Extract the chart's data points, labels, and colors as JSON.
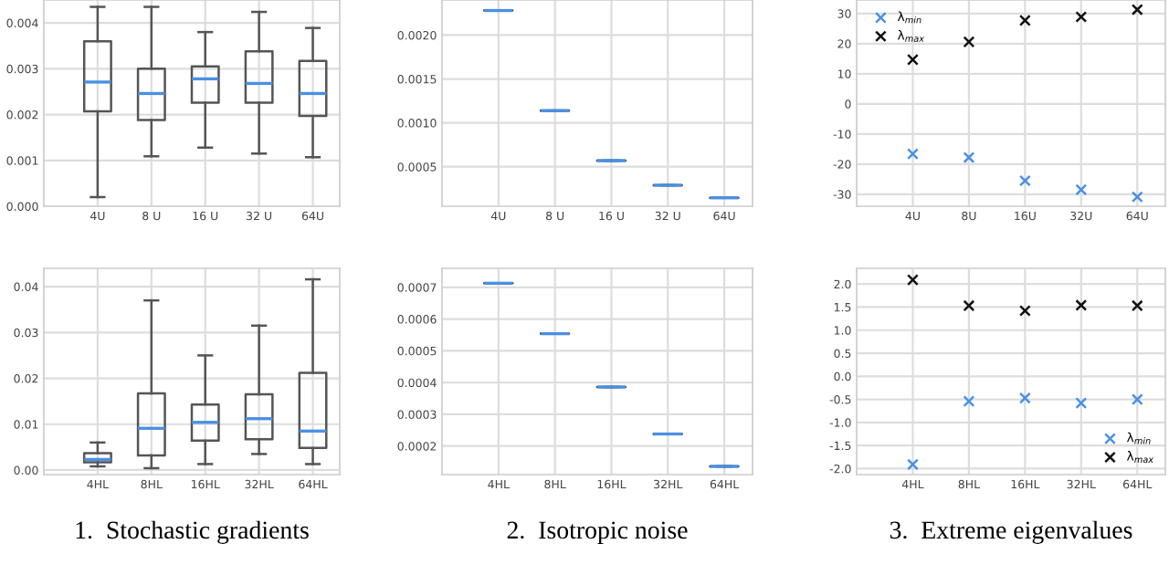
{
  "chart_data": [
    {
      "type": "box",
      "categories": [
        "4U",
        "8 U",
        "16 U",
        "32 U",
        "64U"
      ],
      "ylim": [
        0,
        0.0045
      ],
      "yticks": [
        {
          "value": 0,
          "label": "0.000"
        },
        {
          "value": 0.001,
          "label": "0.001"
        },
        {
          "value": 0.002,
          "label": "0.002"
        },
        {
          "value": 0.003,
          "label": "0.003"
        },
        {
          "value": 0.004,
          "label": "0.004"
        }
      ],
      "grid": true,
      "boxes": [
        {
          "low": 0.0002,
          "q1": 0.00207,
          "median": 0.00271,
          "q3": 0.0036,
          "high": 0.00435
        },
        {
          "low": 0.00109,
          "q1": 0.00188,
          "median": 0.00246,
          "q3": 0.003,
          "high": 0.00435
        },
        {
          "low": 0.00128,
          "q1": 0.00226,
          "median": 0.00278,
          "q3": 0.00305,
          "high": 0.0038
        },
        {
          "low": 0.00115,
          "q1": 0.00226,
          "median": 0.00268,
          "q3": 0.00338,
          "high": 0.00424
        },
        {
          "low": 0.00107,
          "q1": 0.00197,
          "median": 0.00246,
          "q3": 0.00317,
          "high": 0.00389
        }
      ]
    },
    {
      "type": "box",
      "categories": [
        "4U",
        "8 U",
        "16 U",
        "32 U",
        "64U"
      ],
      "ylim": [
        5e-05,
        0.0024
      ],
      "yticks": [
        {
          "value": 0.0005,
          "label": "0.0005"
        },
        {
          "value": 0.001,
          "label": "0.0010"
        },
        {
          "value": 0.0015,
          "label": "0.0015"
        },
        {
          "value": 0.002,
          "label": "0.0020"
        }
      ],
      "grid": true,
      "boxes": [
        {
          "low": 0.00228,
          "q1": 0.00228,
          "median": 0.00228,
          "q3": 0.00228,
          "high": 0.00228
        },
        {
          "low": 0.00114,
          "q1": 0.00114,
          "median": 0.00114,
          "q3": 0.00114,
          "high": 0.00114
        },
        {
          "low": 0.00057,
          "q1": 0.00057,
          "median": 0.00057,
          "q3": 0.00057,
          "high": 0.00057
        },
        {
          "low": 0.00029,
          "q1": 0.00029,
          "median": 0.00029,
          "q3": 0.00029,
          "high": 0.00029
        },
        {
          "low": 0.000146,
          "q1": 0.000146,
          "median": 0.000146,
          "q3": 0.000146,
          "high": 0.000146
        }
      ]
    },
    {
      "type": "scatter",
      "categories": [
        "4U",
        "8U",
        "16U",
        "32U",
        "64U"
      ],
      "ylim": [
        -34,
        34.5
      ],
      "yticks": [
        -30,
        -20,
        -10,
        0,
        10,
        20,
        30
      ],
      "grid": true,
      "legend": "top left",
      "marker": "cross",
      "series": [
        {
          "name": "λ$_{min}$",
          "color": "#4a90e2",
          "values": [
            -16.6,
            -17.8,
            -25.5,
            -28.5,
            -30.9
          ]
        },
        {
          "name": "λ$_{max}$",
          "color": "#111111",
          "values": [
            14.7,
            20.6,
            27.7,
            28.9,
            31.3
          ]
        }
      ]
    },
    {
      "type": "box",
      "categories": [
        "4HL",
        "8HL",
        "16HL",
        "32HL",
        "64HL"
      ],
      "ylim": [
        -0.001,
        0.044
      ],
      "yticks": [
        {
          "value": 0,
          "label": "0.00"
        },
        {
          "value": 0.01,
          "label": "0.01"
        },
        {
          "value": 0.02,
          "label": "0.02"
        },
        {
          "value": 0.03,
          "label": "0.03"
        },
        {
          "value": 0.04,
          "label": "0.04"
        }
      ],
      "grid": true,
      "annotations": [
        "1.  Stochastic gradients"
      ],
      "boxes": [
        {
          "low": 0.0008,
          "q1": 0.0017,
          "median": 0.0023,
          "q3": 0.0037,
          "high": 0.006
        },
        {
          "low": 0.0004,
          "q1": 0.0032,
          "median": 0.0091,
          "q3": 0.0167,
          "high": 0.037
        },
        {
          "low": 0.0013,
          "q1": 0.0064,
          "median": 0.0104,
          "q3": 0.0143,
          "high": 0.025
        },
        {
          "low": 0.0035,
          "q1": 0.0067,
          "median": 0.0112,
          "q3": 0.0165,
          "high": 0.0315
        },
        {
          "low": 0.0013,
          "q1": 0.0048,
          "median": 0.0085,
          "q3": 0.0212,
          "high": 0.0416
        }
      ]
    },
    {
      "type": "box",
      "categories": [
        "4HL",
        "8HL",
        "16HL",
        "32HL",
        "64HL"
      ],
      "ylim": [
        0.00011,
        0.00076
      ],
      "yticks": [
        0.0002,
        0.0003,
        0.0004,
        0.0005,
        0.0006,
        0.0007
      ],
      "grid": true,
      "annotations": [
        "2.  Isotropic noise"
      ],
      "boxes": [
        {
          "low": 0.000713,
          "q1": 0.000713,
          "median": 0.000713,
          "q3": 0.000713,
          "high": 0.000713
        },
        {
          "low": 0.000554,
          "q1": 0.000554,
          "median": 0.000554,
          "q3": 0.000554,
          "high": 0.000554
        },
        {
          "low": 0.000386,
          "q1": 0.000386,
          "median": 0.000386,
          "q3": 0.000386,
          "high": 0.000386
        },
        {
          "low": 0.000238,
          "q1": 0.000238,
          "median": 0.000238,
          "q3": 0.000238,
          "high": 0.000238
        },
        {
          "low": 0.000136,
          "q1": 0.000136,
          "median": 0.000136,
          "q3": 0.000136,
          "high": 0.000136
        }
      ]
    },
    {
      "type": "scatter",
      "categories": [
        "4HL",
        "8HL",
        "16HL",
        "32HL",
        "64HL"
      ],
      "ylim": [
        -2.13,
        2.34
      ],
      "yticks": [
        {
          "value": -2,
          "label": "-2.0"
        },
        {
          "value": -1.5,
          "label": "-1.5"
        },
        {
          "value": -1,
          "label": "-1.0"
        },
        {
          "value": -0.5,
          "label": "-0.5"
        },
        {
          "value": 0,
          "label": "0.0"
        },
        {
          "value": 0.5,
          "label": "0.5"
        },
        {
          "value": 1,
          "label": "1.0"
        },
        {
          "value": 1.5,
          "label": "1.5"
        },
        {
          "value": 2,
          "label": "2.0"
        }
      ],
      "grid": true,
      "legend": "bottom right",
      "marker": "cross",
      "annotations": [
        "3.  Extreme eigenvalues"
      ],
      "series": [
        {
          "name": "λ$_{min}$",
          "color": "#4a90e2",
          "values": [
            -1.91,
            -0.54,
            -0.47,
            -0.58,
            -0.5
          ]
        },
        {
          "name": "λ$_{max}$",
          "color": "#111111",
          "values": [
            2.09,
            1.53,
            1.42,
            1.54,
            1.53
          ]
        }
      ]
    }
  ]
}
